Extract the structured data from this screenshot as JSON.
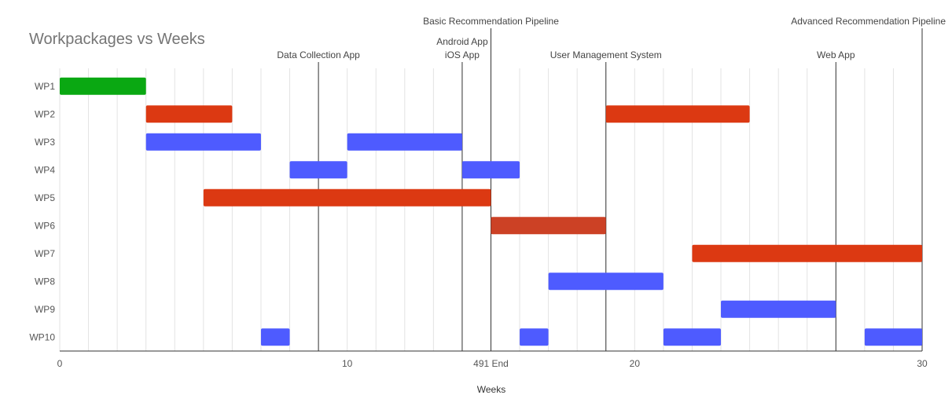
{
  "chart_data": {
    "type": "bar",
    "subtype": "gantt",
    "title": "Workpackages vs Weeks",
    "xlabel": "Weeks",
    "ylabel": "",
    "xlim": [
      0,
      30
    ],
    "x_ticks": [
      "0",
      "10",
      "491 End",
      "20",
      "30"
    ],
    "categories": [
      "WP1",
      "WP2",
      "WP3",
      "WP4",
      "WP5",
      "WP6",
      "WP7",
      "WP8",
      "WP9",
      "WP10"
    ],
    "grid": true,
    "colors": {
      "green": "#0aa812",
      "red": "#dc3912",
      "rust": "#cc4125",
      "blue": "#4e5bff"
    },
    "bars": [
      {
        "category": "WP1",
        "start": 0,
        "end": 3,
        "color": "green"
      },
      {
        "category": "WP2",
        "start": 3,
        "end": 6,
        "color": "red"
      },
      {
        "category": "WP2",
        "start": 19,
        "end": 24,
        "color": "red"
      },
      {
        "category": "WP3",
        "start": 3,
        "end": 7,
        "color": "blue"
      },
      {
        "category": "WP3",
        "start": 10,
        "end": 14,
        "color": "blue"
      },
      {
        "category": "WP4",
        "start": 8,
        "end": 10,
        "color": "blue"
      },
      {
        "category": "WP4",
        "start": 14,
        "end": 16,
        "color": "blue"
      },
      {
        "category": "WP5",
        "start": 5,
        "end": 15,
        "color": "red"
      },
      {
        "category": "WP6",
        "start": 15,
        "end": 19,
        "color": "rust"
      },
      {
        "category": "WP7",
        "start": 22,
        "end": 30,
        "color": "red"
      },
      {
        "category": "WP8",
        "start": 17,
        "end": 21,
        "color": "blue"
      },
      {
        "category": "WP9",
        "start": 23,
        "end": 27,
        "color": "blue"
      },
      {
        "category": "WP10",
        "start": 7,
        "end": 8,
        "color": "blue"
      },
      {
        "category": "WP10",
        "start": 16,
        "end": 17,
        "color": "blue"
      },
      {
        "category": "WP10",
        "start": 21,
        "end": 23,
        "color": "blue"
      },
      {
        "category": "WP10",
        "start": 28,
        "end": 30,
        "color": "blue"
      }
    ],
    "milestones": [
      {
        "x": 9,
        "label": "Data Collection App",
        "lines": [
          "Data Collection App"
        ]
      },
      {
        "x": 14,
        "label": "Android App / iOS App",
        "lines": [
          "Android App",
          "iOS App"
        ]
      },
      {
        "x": 15,
        "label": "Basic Recommendation Pipeline",
        "lines": [
          "Basic Recommendation Pipeline"
        ]
      },
      {
        "x": 19,
        "label": "User Management System",
        "lines": [
          "User Management System"
        ]
      },
      {
        "x": 27,
        "label": "Web App",
        "lines": [
          "Web App"
        ]
      },
      {
        "x": 30,
        "label": "Advanced Recommendation Pipeline",
        "lines": [
          "Advanced Recommendation Pipeline"
        ]
      }
    ]
  }
}
